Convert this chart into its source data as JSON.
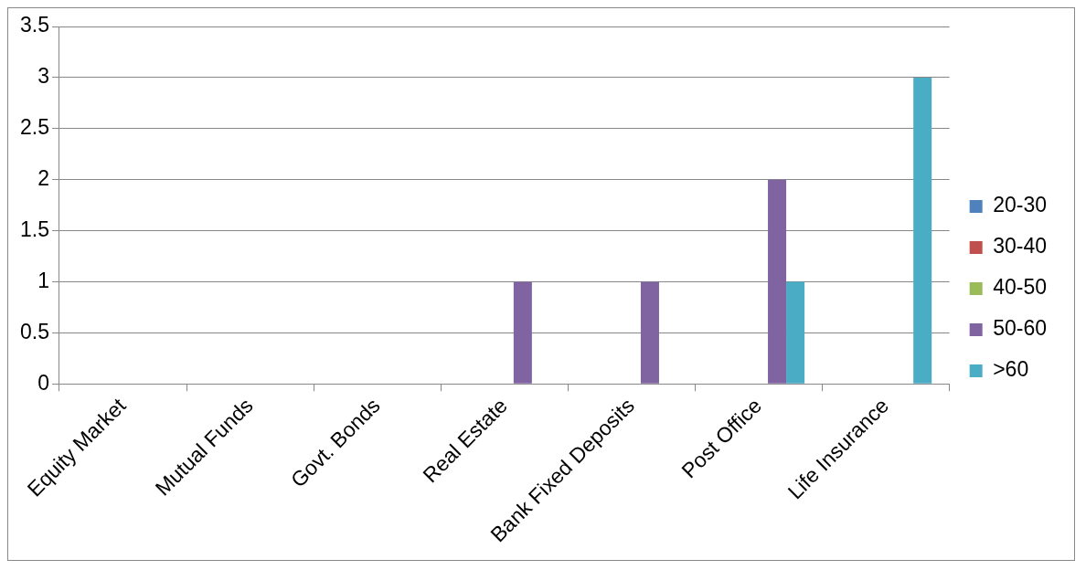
{
  "chart_data": {
    "type": "bar",
    "categories": [
      "Equity Market",
      "Mutual Funds",
      "Govt. Bonds",
      "Real Estate",
      "Bank Fixed Deposits",
      "Post Office",
      "Life Insurance"
    ],
    "series": [
      {
        "name": "20-30",
        "color": "#4f81bd",
        "values": [
          0,
          0,
          0,
          0,
          0,
          0,
          0
        ]
      },
      {
        "name": "30-40",
        "color": "#c0504d",
        "values": [
          0,
          0,
          0,
          0,
          0,
          0,
          0
        ]
      },
      {
        "name": "40-50",
        "color": "#9bbb59",
        "values": [
          0,
          0,
          0,
          0,
          0,
          0,
          0
        ]
      },
      {
        "name": "50-60",
        "color": "#8064a2",
        "values": [
          0,
          0,
          0,
          1,
          1,
          2,
          0
        ]
      },
      {
        "name": ">60",
        "color": "#4bacc6",
        "values": [
          0,
          0,
          0,
          0,
          0,
          1,
          3
        ]
      }
    ],
    "ylim": [
      0,
      3.5
    ],
    "yticks": [
      0,
      0.5,
      1,
      1.5,
      2,
      2.5,
      3,
      3.5
    ],
    "grid": "y",
    "legend": "right"
  }
}
